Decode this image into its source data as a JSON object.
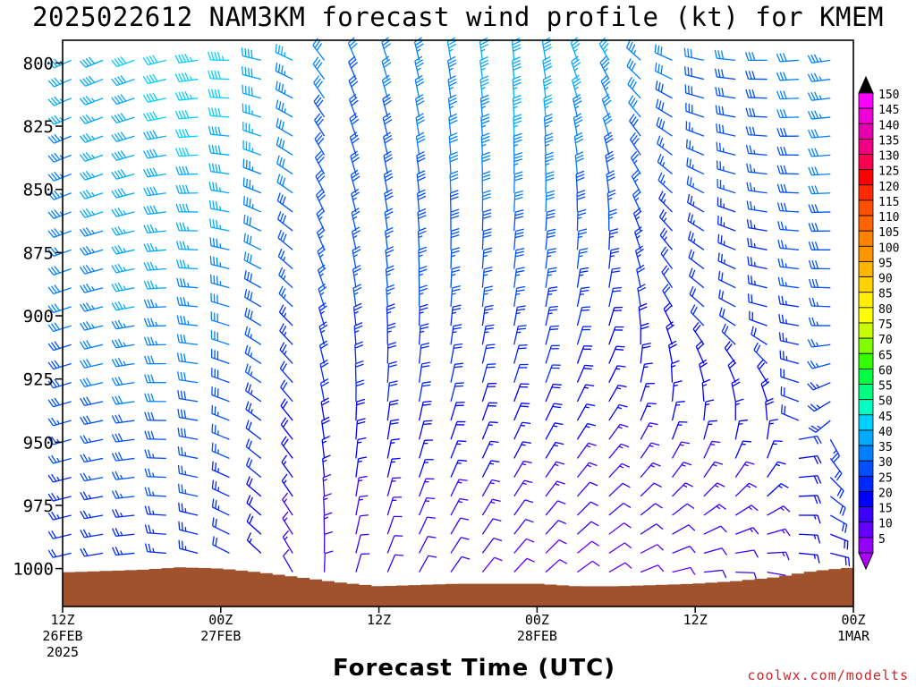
{
  "title": "2025022612 NAM3KM forecast wind profile (kt) for KMEM",
  "xlabel": "Forecast Time (UTC)",
  "credit": "coolwx.com/modelts",
  "chart_data": {
    "type": "wind-barb-time-height",
    "title": "2025022612 NAM3KM forecast wind profile (kt) for KMEM",
    "xlabel": "Forecast Time (UTC)",
    "ylabel": "",
    "y_axis": {
      "scale": "pressure (hPa), increasing downward",
      "ylim": [
        1015,
        791
      ],
      "ticks": [
        800,
        825,
        850,
        875,
        900,
        925,
        950,
        975,
        1000
      ]
    },
    "x_axis": {
      "range_hours": [
        0,
        60
      ],
      "ticks": [
        {
          "hour": 0,
          "lines": [
            "12Z",
            "26FEB",
            "2025"
          ]
        },
        {
          "hour": 12,
          "lines": [
            "00Z",
            "27FEB"
          ]
        },
        {
          "hour": 24,
          "lines": [
            "12Z"
          ]
        },
        {
          "hour": 36,
          "lines": [
            "00Z",
            "28FEB"
          ]
        },
        {
          "hour": 48,
          "lines": [
            "12Z"
          ]
        },
        {
          "hour": 60,
          "lines": [
            "00Z",
            "1MAR"
          ]
        }
      ]
    },
    "colorbar": {
      "units": "kt",
      "labels": [
        150,
        145,
        140,
        135,
        130,
        125,
        120,
        115,
        110,
        105,
        100,
        95,
        90,
        85,
        80,
        75,
        70,
        65,
        60,
        55,
        50,
        45,
        40,
        35,
        30,
        25,
        20,
        15,
        10,
        5
      ],
      "colors": [
        "#ff00ff",
        "#f000d8",
        "#e800b0",
        "#f00080",
        "#ff0050",
        "#ff0000",
        "#ff2a00",
        "#ff5000",
        "#ff6400",
        "#ff8200",
        "#ff9600",
        "#ffb400",
        "#ffd200",
        "#ffee00",
        "#ffff00",
        "#c8ff00",
        "#80ff00",
        "#33ff00",
        "#00ff40",
        "#00ff80",
        "#00ffc0",
        "#00d0ff",
        "#00aaff",
        "#0080ff",
        "#0050ff",
        "#0028ff",
        "#0000ff",
        "#3c00ff",
        "#6400ff",
        "#9600ff"
      ]
    },
    "surface_pressure_hPa": {
      "hours": [
        0,
        3,
        6,
        9,
        12,
        15,
        18,
        21,
        24,
        27,
        30,
        33,
        36,
        39,
        42,
        45,
        48,
        51,
        54,
        57,
        60
      ],
      "values": [
        1001.5,
        1001,
        1000.5,
        999.5,
        1000,
        1001.5,
        1003.5,
        1005.5,
        1007,
        1006.5,
        1006,
        1006,
        1006,
        1007,
        1007,
        1006.5,
        1006,
        1005,
        1003.5,
        1001,
        999.5
      ]
    },
    "wind_barbs": {
      "direction_deg": {
        "hours": [
          0,
          6,
          12,
          18,
          21,
          24,
          30,
          36,
          42,
          48,
          54,
          60
        ],
        "levels": [
          800,
          900,
          1000
        ],
        "values": [
          [
            245,
            250,
            255
          ],
          [
            250,
            260,
            265
          ],
          [
            265,
            280,
            290
          ],
          [
            295,
            315,
            330
          ],
          [
            330,
            350,
            10
          ],
          [
            340,
            355,
            20
          ],
          [
            350,
            5,
            35
          ],
          [
            355,
            10,
            45
          ],
          [
            330,
            15,
            60
          ],
          [
            285,
            320,
            80
          ],
          [
            270,
            285,
            100
          ],
          [
            260,
            270,
            95
          ]
        ]
      },
      "speed_kt": {
        "hours": [
          0,
          6,
          12,
          18,
          21,
          24,
          30,
          36,
          42,
          48,
          54,
          60
        ],
        "levels": [
          800,
          900,
          1000
        ],
        "values": [
          [
            35,
            30,
            20
          ],
          [
            40,
            35,
            22
          ],
          [
            45,
            33,
            22
          ],
          [
            35,
            25,
            12
          ],
          [
            30,
            25,
            10
          ],
          [
            30,
            25,
            10
          ],
          [
            35,
            25,
            10
          ],
          [
            40,
            25,
            8
          ],
          [
            35,
            20,
            8
          ],
          [
            30,
            20,
            10
          ],
          [
            30,
            22,
            12
          ],
          [
            35,
            28,
            20
          ]
        ]
      }
    }
  }
}
